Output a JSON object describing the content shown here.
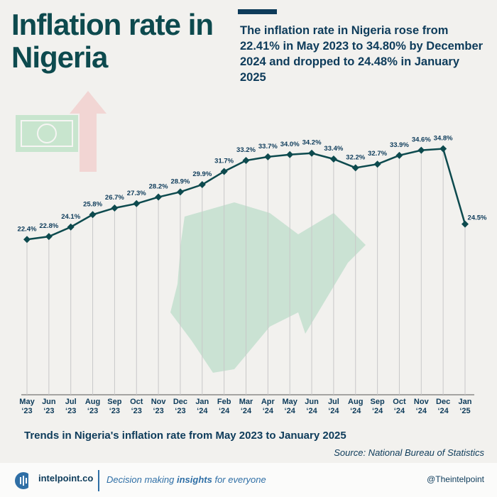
{
  "chart_data": {
    "type": "line",
    "title": "Inflation rate in Nigeria",
    "subtitle": "The inflation rate in Nigeria rose from 22.41% in May 2023 to 34.80% by December 2024 and dropped to 24.48% in January 2025",
    "caption": "Trends in Nigeria's inflation rate from May 2023 to January 2025",
    "source": "Source: National Bureau of Statistics",
    "categories": [
      "May\n‘23",
      "Jun\n‘23",
      "Jul\n‘23",
      "Aug\n‘23",
      "Sep\n‘23",
      "Oct\n‘23",
      "Nov\n‘23",
      "Dec\n‘23",
      "Jan\n‘24",
      "Feb\n‘24",
      "Mar\n‘24",
      "Apr\n‘24",
      "May\n‘24",
      "Jun\n‘24",
      "Jul\n‘24",
      "Aug\n‘24",
      "Sep\n‘24",
      "Oct\n‘24",
      "Nov\n‘24",
      "Dec\n‘24",
      "Jan\n‘25"
    ],
    "values": [
      22.4,
      22.8,
      24.1,
      25.8,
      26.7,
      27.3,
      28.2,
      28.9,
      29.9,
      31.7,
      33.2,
      33.7,
      34.0,
      34.2,
      33.4,
      32.2,
      32.7,
      33.9,
      34.6,
      34.8,
      24.5
    ],
    "value_labels": [
      "22.4%",
      "22.8%",
      "24.1%",
      "25.8%",
      "26.7%",
      "27.3%",
      "28.2%",
      "28.9%",
      "29.9%",
      "31.7%",
      "33.2%",
      "33.7%",
      "34.0%",
      "34.2%",
      "33.4%",
      "32.2%",
      "32.7%",
      "33.9%",
      "34.6%",
      "34.8%",
      "24.5%"
    ],
    "color": "#0d4a4e",
    "ylim": [
      0,
      40
    ]
  },
  "footer": {
    "brand": "intelpoint.co",
    "tagline": [
      "Decision making ",
      "insights",
      " for everyone"
    ],
    "handle": "@Theintelpoint"
  }
}
